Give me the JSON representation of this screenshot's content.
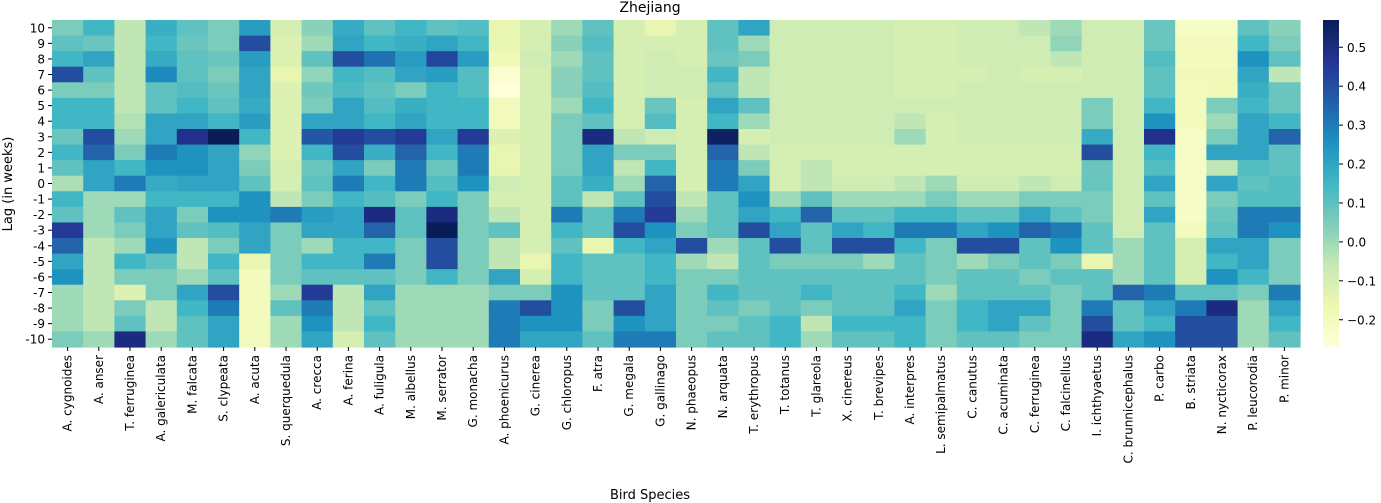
{
  "chart_data": {
    "type": "heatmap",
    "title": "Zhejiang",
    "xlabel": "Bird Species",
    "ylabel": "Lag (in weeks)",
    "x_categories": [
      "A. cygnoides",
      "A. anser",
      "T. ferruginea",
      "A. galericulata",
      "M. falcata",
      "S. clypeata",
      "A. acuta",
      "S. querquedula",
      "A. crecca",
      "A. ferina",
      "A. fuligula",
      "M. albellus",
      "M. serrator",
      "G. monacha",
      "A. phoenicurus",
      "G. cinerea",
      "G. chloropus",
      "F. atra",
      "G. megala",
      "G. gallinago",
      "N. phaeopus",
      "N. arquata",
      "T. erythropus",
      "T. totanus",
      "T. glareola",
      "X. cinereus",
      "T. brevipes",
      "A. interpres",
      "L. semipalmatus",
      "C. canutus",
      "C. acuminata",
      "C. ferruginea",
      "C. falcinellus",
      "I. ichthyaetus",
      "C. brunnicephalus",
      "P. carbo",
      "B. striata",
      "N. nycticorax",
      "P. leucorodia",
      "P. minor"
    ],
    "y_categories": [
      "10",
      "9",
      "8",
      "7",
      "6",
      "5",
      "4",
      "3",
      "2",
      "1",
      "0",
      "-1",
      "-2",
      "-3",
      "-4",
      "-5",
      "-6",
      "-7",
      "-8",
      "-9",
      "-10"
    ],
    "colorbar": {
      "min": -0.27,
      "max": 0.57,
      "ticks": [
        0.5,
        0.4,
        0.3,
        0.2,
        0.1,
        0.0,
        -0.1,
        -0.2
      ],
      "tick_labels": [
        "0.5",
        "0.4",
        "0.3",
        "0.2",
        "0.1",
        "0.0",
        "−0.1",
        "−0.2"
      ],
      "colormap": "YlGnBu"
    },
    "values": [
      [
        0.05,
        0.15,
        -0.05,
        0.17,
        0.1,
        0.05,
        0.22,
        -0.1,
        0.03,
        0.18,
        0.1,
        0.15,
        0.1,
        0.12,
        -0.15,
        -0.1,
        0.0,
        0.1,
        -0.1,
        -0.15,
        -0.1,
        0.1,
        0.2,
        -0.08,
        -0.08,
        -0.08,
        -0.08,
        -0.1,
        -0.1,
        -0.08,
        -0.08,
        -0.05,
        0.0,
        -0.08,
        -0.08,
        0.08,
        -0.22,
        -0.22,
        0.1,
        0.03
      ],
      [
        0.1,
        0.08,
        -0.05,
        0.15,
        0.08,
        0.05,
        0.4,
        -0.12,
        0.0,
        0.2,
        0.15,
        0.17,
        0.2,
        0.15,
        -0.15,
        -0.1,
        0.03,
        0.12,
        -0.1,
        -0.1,
        -0.1,
        0.1,
        0.0,
        -0.08,
        -0.08,
        -0.08,
        -0.08,
        -0.1,
        -0.1,
        -0.08,
        -0.08,
        -0.08,
        0.02,
        -0.08,
        -0.08,
        0.08,
        -0.2,
        -0.2,
        0.15,
        0.05
      ],
      [
        0.15,
        0.2,
        -0.05,
        0.18,
        0.1,
        0.08,
        0.22,
        -0.12,
        0.1,
        0.4,
        0.32,
        0.22,
        0.42,
        0.22,
        -0.18,
        -0.08,
        0.0,
        0.1,
        -0.1,
        -0.08,
        -0.1,
        0.08,
        0.05,
        -0.08,
        -0.08,
        -0.08,
        -0.08,
        -0.1,
        -0.1,
        -0.08,
        -0.08,
        -0.08,
        -0.05,
        -0.08,
        -0.08,
        0.12,
        -0.2,
        -0.2,
        0.25,
        0.1
      ],
      [
        0.4,
        0.1,
        -0.05,
        0.27,
        0.1,
        0.05,
        0.2,
        -0.15,
        0.02,
        0.15,
        0.12,
        0.2,
        0.22,
        0.12,
        -0.25,
        -0.1,
        0.03,
        0.1,
        -0.1,
        -0.08,
        -0.08,
        0.15,
        -0.05,
        -0.08,
        -0.08,
        -0.08,
        -0.08,
        -0.1,
        -0.1,
        -0.1,
        -0.08,
        -0.1,
        -0.1,
        -0.08,
        -0.08,
        0.1,
        -0.18,
        -0.18,
        0.2,
        -0.05
      ],
      [
        0.05,
        0.05,
        -0.05,
        0.1,
        0.12,
        0.08,
        0.2,
        -0.12,
        0.07,
        0.13,
        0.1,
        0.05,
        0.15,
        0.12,
        -0.27,
        -0.1,
        0.03,
        0.12,
        -0.1,
        -0.08,
        -0.08,
        0.1,
        -0.05,
        -0.08,
        -0.08,
        -0.08,
        -0.08,
        -0.1,
        -0.1,
        -0.08,
        -0.08,
        -0.08,
        -0.08,
        -0.08,
        -0.08,
        0.1,
        -0.2,
        -0.18,
        0.17,
        0.08
      ],
      [
        0.15,
        0.15,
        -0.05,
        0.1,
        0.15,
        0.1,
        0.18,
        -0.12,
        0.05,
        0.2,
        0.12,
        0.17,
        0.15,
        0.15,
        -0.2,
        -0.1,
        0.0,
        0.15,
        -0.1,
        0.08,
        -0.1,
        0.2,
        0.1,
        -0.08,
        -0.08,
        -0.08,
        -0.08,
        -0.08,
        -0.08,
        -0.08,
        -0.08,
        -0.08,
        -0.08,
        0.05,
        -0.08,
        0.15,
        -0.2,
        0.05,
        0.15,
        0.08
      ],
      [
        0.15,
        0.15,
        -0.03,
        0.2,
        0.2,
        0.15,
        0.22,
        -0.12,
        0.2,
        0.2,
        0.15,
        0.2,
        0.15,
        0.15,
        -0.2,
        -0.1,
        0.05,
        0.1,
        -0.1,
        0.12,
        -0.1,
        0.15,
        0.0,
        -0.08,
        -0.08,
        -0.08,
        -0.08,
        -0.05,
        -0.1,
        -0.08,
        -0.08,
        -0.08,
        -0.08,
        0.05,
        -0.08,
        0.25,
        -0.2,
        0.0,
        0.2,
        0.15
      ],
      [
        0.08,
        0.4,
        0.0,
        0.2,
        0.48,
        0.57,
        0.15,
        -0.12,
        0.38,
        0.45,
        0.4,
        0.45,
        0.2,
        0.45,
        -0.12,
        -0.1,
        0.05,
        0.5,
        -0.05,
        -0.08,
        -0.1,
        0.55,
        -0.1,
        -0.08,
        -0.08,
        -0.08,
        -0.08,
        0.0,
        -0.1,
        -0.08,
        -0.08,
        -0.08,
        -0.08,
        0.18,
        -0.08,
        0.48,
        -0.22,
        0.05,
        0.2,
        0.35
      ],
      [
        0.15,
        0.35,
        0.05,
        0.3,
        0.25,
        0.2,
        0.02,
        -0.12,
        0.15,
        0.4,
        0.17,
        0.35,
        0.15,
        0.3,
        -0.15,
        -0.1,
        0.05,
        0.2,
        0.05,
        0.05,
        -0.1,
        0.35,
        -0.05,
        -0.1,
        -0.1,
        -0.1,
        -0.1,
        -0.1,
        -0.1,
        -0.1,
        -0.1,
        -0.1,
        -0.1,
        0.4,
        -0.08,
        0.15,
        -0.22,
        0.2,
        0.2,
        0.1
      ],
      [
        0.1,
        0.2,
        0.15,
        0.25,
        0.25,
        0.2,
        0.05,
        -0.1,
        0.08,
        0.2,
        0.05,
        0.3,
        0.08,
        0.3,
        -0.15,
        -0.1,
        0.05,
        0.2,
        -0.05,
        0.15,
        -0.1,
        0.3,
        0.05,
        -0.1,
        -0.05,
        -0.1,
        -0.1,
        -0.1,
        -0.1,
        -0.1,
        -0.1,
        -0.1,
        -0.1,
        0.08,
        -0.08,
        0.12,
        -0.22,
        -0.05,
        0.12,
        0.1
      ],
      [
        -0.02,
        0.2,
        0.3,
        0.18,
        0.2,
        0.2,
        0.1,
        -0.1,
        0.1,
        0.3,
        0.15,
        0.3,
        0.12,
        0.25,
        -0.08,
        -0.1,
        0.1,
        0.17,
        0.0,
        0.35,
        -0.1,
        0.3,
        0.2,
        -0.1,
        -0.05,
        -0.08,
        -0.08,
        -0.05,
        0.0,
        -0.08,
        -0.08,
        -0.05,
        -0.08,
        0.08,
        -0.08,
        0.2,
        -0.22,
        0.2,
        0.1,
        0.12
      ],
      [
        0.15,
        0.0,
        0.0,
        0.15,
        0.15,
        0.15,
        0.25,
        -0.05,
        0.05,
        0.15,
        0.12,
        0.05,
        0.15,
        0.05,
        -0.1,
        -0.1,
        0.1,
        -0.05,
        0.1,
        0.4,
        -0.05,
        0.1,
        0.25,
        0.0,
        0.1,
        0.0,
        0.0,
        0.0,
        0.05,
        0.0,
        0.0,
        0.05,
        0.05,
        0.05,
        -0.08,
        0.1,
        -0.22,
        0.05,
        0.12,
        0.12
      ],
      [
        0.1,
        0.0,
        0.1,
        0.2,
        0.05,
        0.25,
        0.25,
        0.3,
        0.22,
        0.2,
        0.5,
        0.1,
        0.5,
        0.05,
        -0.05,
        -0.1,
        0.3,
        0.1,
        0.3,
        0.45,
        0.0,
        0.1,
        0.2,
        0.15,
        0.35,
        0.1,
        0.1,
        0.15,
        0.15,
        0.1,
        0.1,
        0.2,
        0.1,
        0.05,
        -0.08,
        0.2,
        -0.22,
        0.08,
        0.3,
        0.3
      ],
      [
        0.45,
        0.0,
        0.05,
        0.2,
        0.1,
        0.12,
        0.2,
        0.05,
        0.2,
        0.2,
        0.35,
        0.1,
        0.57,
        0.05,
        0.1,
        -0.1,
        0.15,
        0.1,
        0.4,
        0.25,
        0.05,
        0.1,
        0.4,
        0.2,
        0.1,
        0.2,
        0.15,
        0.3,
        0.3,
        0.2,
        0.25,
        0.35,
        0.3,
        0.1,
        -0.08,
        0.1,
        -0.2,
        0.1,
        0.3,
        0.25
      ],
      [
        0.35,
        -0.05,
        0.0,
        0.25,
        -0.05,
        0.05,
        0.2,
        0.05,
        0.0,
        0.15,
        0.15,
        0.05,
        0.4,
        0.05,
        -0.05,
        -0.1,
        0.1,
        -0.15,
        0.15,
        0.2,
        0.4,
        0.0,
        0.1,
        0.4,
        0.1,
        0.4,
        0.4,
        0.15,
        0.05,
        0.4,
        0.4,
        0.1,
        0.25,
        0.1,
        0.0,
        0.1,
        -0.1,
        0.2,
        0.2,
        0.05
      ],
      [
        0.2,
        -0.05,
        0.15,
        0.1,
        -0.05,
        0.15,
        -0.15,
        0.05,
        0.15,
        0.15,
        0.3,
        0.05,
        0.4,
        0.05,
        -0.05,
        -0.15,
        0.15,
        0.1,
        0.1,
        0.15,
        0.0,
        -0.05,
        0.1,
        0.05,
        0.05,
        0.05,
        0.0,
        0.1,
        0.05,
        0.0,
        0.05,
        0.1,
        0.05,
        -0.15,
        0.0,
        0.1,
        -0.1,
        0.15,
        0.2,
        0.05
      ],
      [
        0.25,
        -0.05,
        0.05,
        0.05,
        0.0,
        0.1,
        -0.2,
        0.05,
        0.1,
        0.1,
        0.1,
        0.05,
        0.15,
        0.05,
        0.2,
        -0.1,
        0.15,
        0.1,
        0.1,
        0.15,
        0.05,
        0.05,
        0.1,
        0.1,
        0.1,
        0.1,
        0.1,
        0.1,
        0.05,
        0.1,
        0.1,
        0.05,
        0.1,
        0.1,
        0.0,
        0.1,
        -0.1,
        0.25,
        0.15,
        0.05
      ],
      [
        0.0,
        -0.05,
        -0.12,
        0.05,
        0.2,
        0.4,
        -0.2,
        0.0,
        0.45,
        -0.05,
        0.2,
        0.0,
        0.0,
        0.0,
        0.05,
        0.05,
        0.25,
        0.1,
        0.1,
        0.2,
        0.05,
        0.15,
        0.1,
        0.1,
        0.15,
        0.1,
        0.1,
        0.15,
        0.0,
        0.1,
        0.1,
        0.1,
        0.05,
        0.1,
        0.35,
        0.3,
        0.1,
        0.1,
        0.05,
        0.3
      ],
      [
        0.0,
        -0.05,
        0.05,
        -0.05,
        0.15,
        0.3,
        -0.2,
        0.1,
        0.3,
        -0.05,
        0.1,
        0.0,
        0.0,
        0.0,
        0.3,
        0.4,
        0.25,
        0.05,
        0.4,
        0.2,
        0.05,
        0.1,
        0.05,
        0.1,
        0.05,
        0.1,
        0.1,
        0.2,
        0.05,
        0.15,
        0.2,
        0.2,
        0.05,
        0.3,
        0.1,
        0.2,
        0.3,
        0.5,
        0.0,
        0.2
      ],
      [
        0.0,
        -0.05,
        0.1,
        -0.05,
        0.1,
        0.2,
        -0.2,
        0.0,
        0.25,
        -0.05,
        0.15,
        0.0,
        0.0,
        0.0,
        0.3,
        0.25,
        0.25,
        0.05,
        0.25,
        0.2,
        0.05,
        0.05,
        0.1,
        0.15,
        -0.05,
        0.15,
        0.15,
        0.15,
        0.05,
        0.15,
        0.2,
        0.1,
        0.05,
        0.4,
        0.1,
        0.15,
        0.4,
        0.4,
        0.0,
        0.15
      ],
      [
        0.05,
        0.0,
        0.5,
        0.0,
        0.1,
        0.2,
        -0.2,
        0.0,
        0.2,
        -0.1,
        0.1,
        0.0,
        0.0,
        0.0,
        0.3,
        0.2,
        0.2,
        0.1,
        0.3,
        0.3,
        0.05,
        0.1,
        0.1,
        0.15,
        0.0,
        0.1,
        0.1,
        0.15,
        0.05,
        0.1,
        0.1,
        0.05,
        0.05,
        0.5,
        0.2,
        0.25,
        0.4,
        0.4,
        0.0,
        0.1
      ]
    ]
  }
}
